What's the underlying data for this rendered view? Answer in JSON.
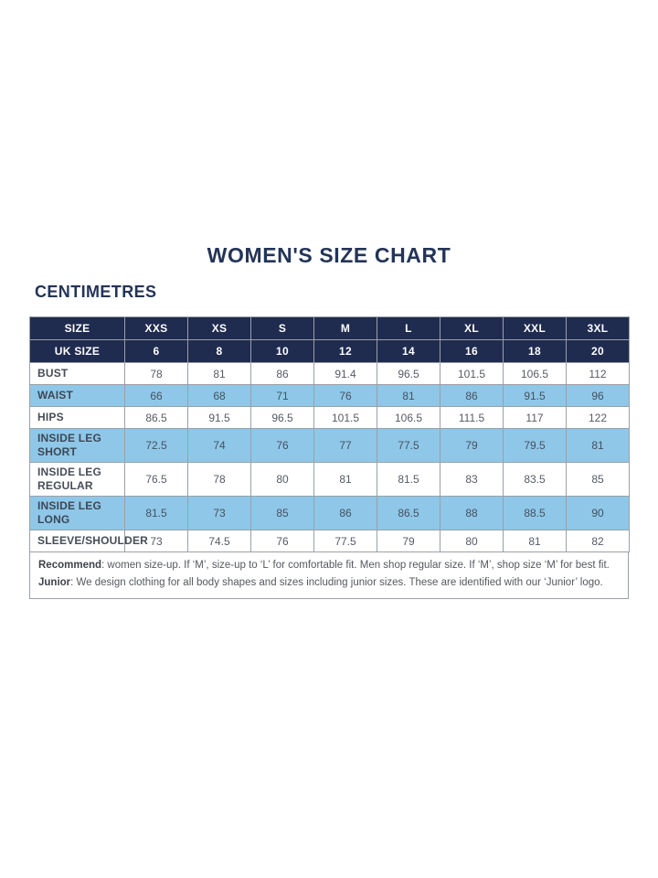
{
  "page": {
    "title": "WOMEN'S SIZE CHART",
    "unit_label": "CENTIMETRES"
  },
  "colors": {
    "header_navy": "#1f2b4f",
    "highlight_blue": "#8fc7e8",
    "title_navy": "#233457",
    "border_gray": "#9aa0a6"
  },
  "chart_data": {
    "type": "table",
    "title": "WOMEN'S SIZE CHART",
    "unit": "CENTIMETRES",
    "header_rows": [
      {
        "label": "SIZE",
        "values": [
          "XXS",
          "XS",
          "S",
          "M",
          "L",
          "XL",
          "XXL",
          "3XL"
        ]
      },
      {
        "label": "UK SIZE",
        "values": [
          "6",
          "8",
          "10",
          "12",
          "14",
          "16",
          "18",
          "20"
        ]
      }
    ],
    "rows": [
      {
        "label": "BUST",
        "highlight": false,
        "values": [
          "78",
          "81",
          "86",
          "91.4",
          "96.5",
          "101.5",
          "106.5",
          "112"
        ]
      },
      {
        "label": "WAIST",
        "highlight": true,
        "values": [
          "66",
          "68",
          "71",
          "76",
          "81",
          "86",
          "91.5",
          "96"
        ]
      },
      {
        "label": "HIPS",
        "highlight": false,
        "values": [
          "86.5",
          "91.5",
          "96.5",
          "101.5",
          "106.5",
          "111.5",
          "117",
          "122"
        ]
      },
      {
        "label": "INSIDE LEG SHORT",
        "highlight": true,
        "values": [
          "72.5",
          "74",
          "76",
          "77",
          "77.5",
          "79",
          "79.5",
          "81"
        ]
      },
      {
        "label": "INSIDE LEG REGULAR",
        "highlight": false,
        "values": [
          "76.5",
          "78",
          "80",
          "81",
          "81.5",
          "83",
          "83.5",
          "85"
        ]
      },
      {
        "label": "INSIDE LEG LONG",
        "highlight": true,
        "values": [
          "81.5",
          "73",
          "85",
          "86",
          "86.5",
          "88",
          "88.5",
          "90"
        ]
      },
      {
        "label": "SLEEVE/SHOULDER",
        "highlight": false,
        "values": [
          "73",
          "74.5",
          "76",
          "77.5",
          "79",
          "80",
          "81",
          "82"
        ]
      }
    ]
  },
  "footnote": {
    "line1": {
      "bold": "Recommend",
      "text": ": women size-up. If ‘M’, size-up to ‘L’ for comfortable fit. Men shop regular size. If ‘M’, shop size ‘M’ for best fit."
    },
    "line2": {
      "bold": "Junior",
      "text": ": We design clothing for all body shapes and sizes including junior sizes. These are identified with our ‘Junior’ logo."
    }
  }
}
